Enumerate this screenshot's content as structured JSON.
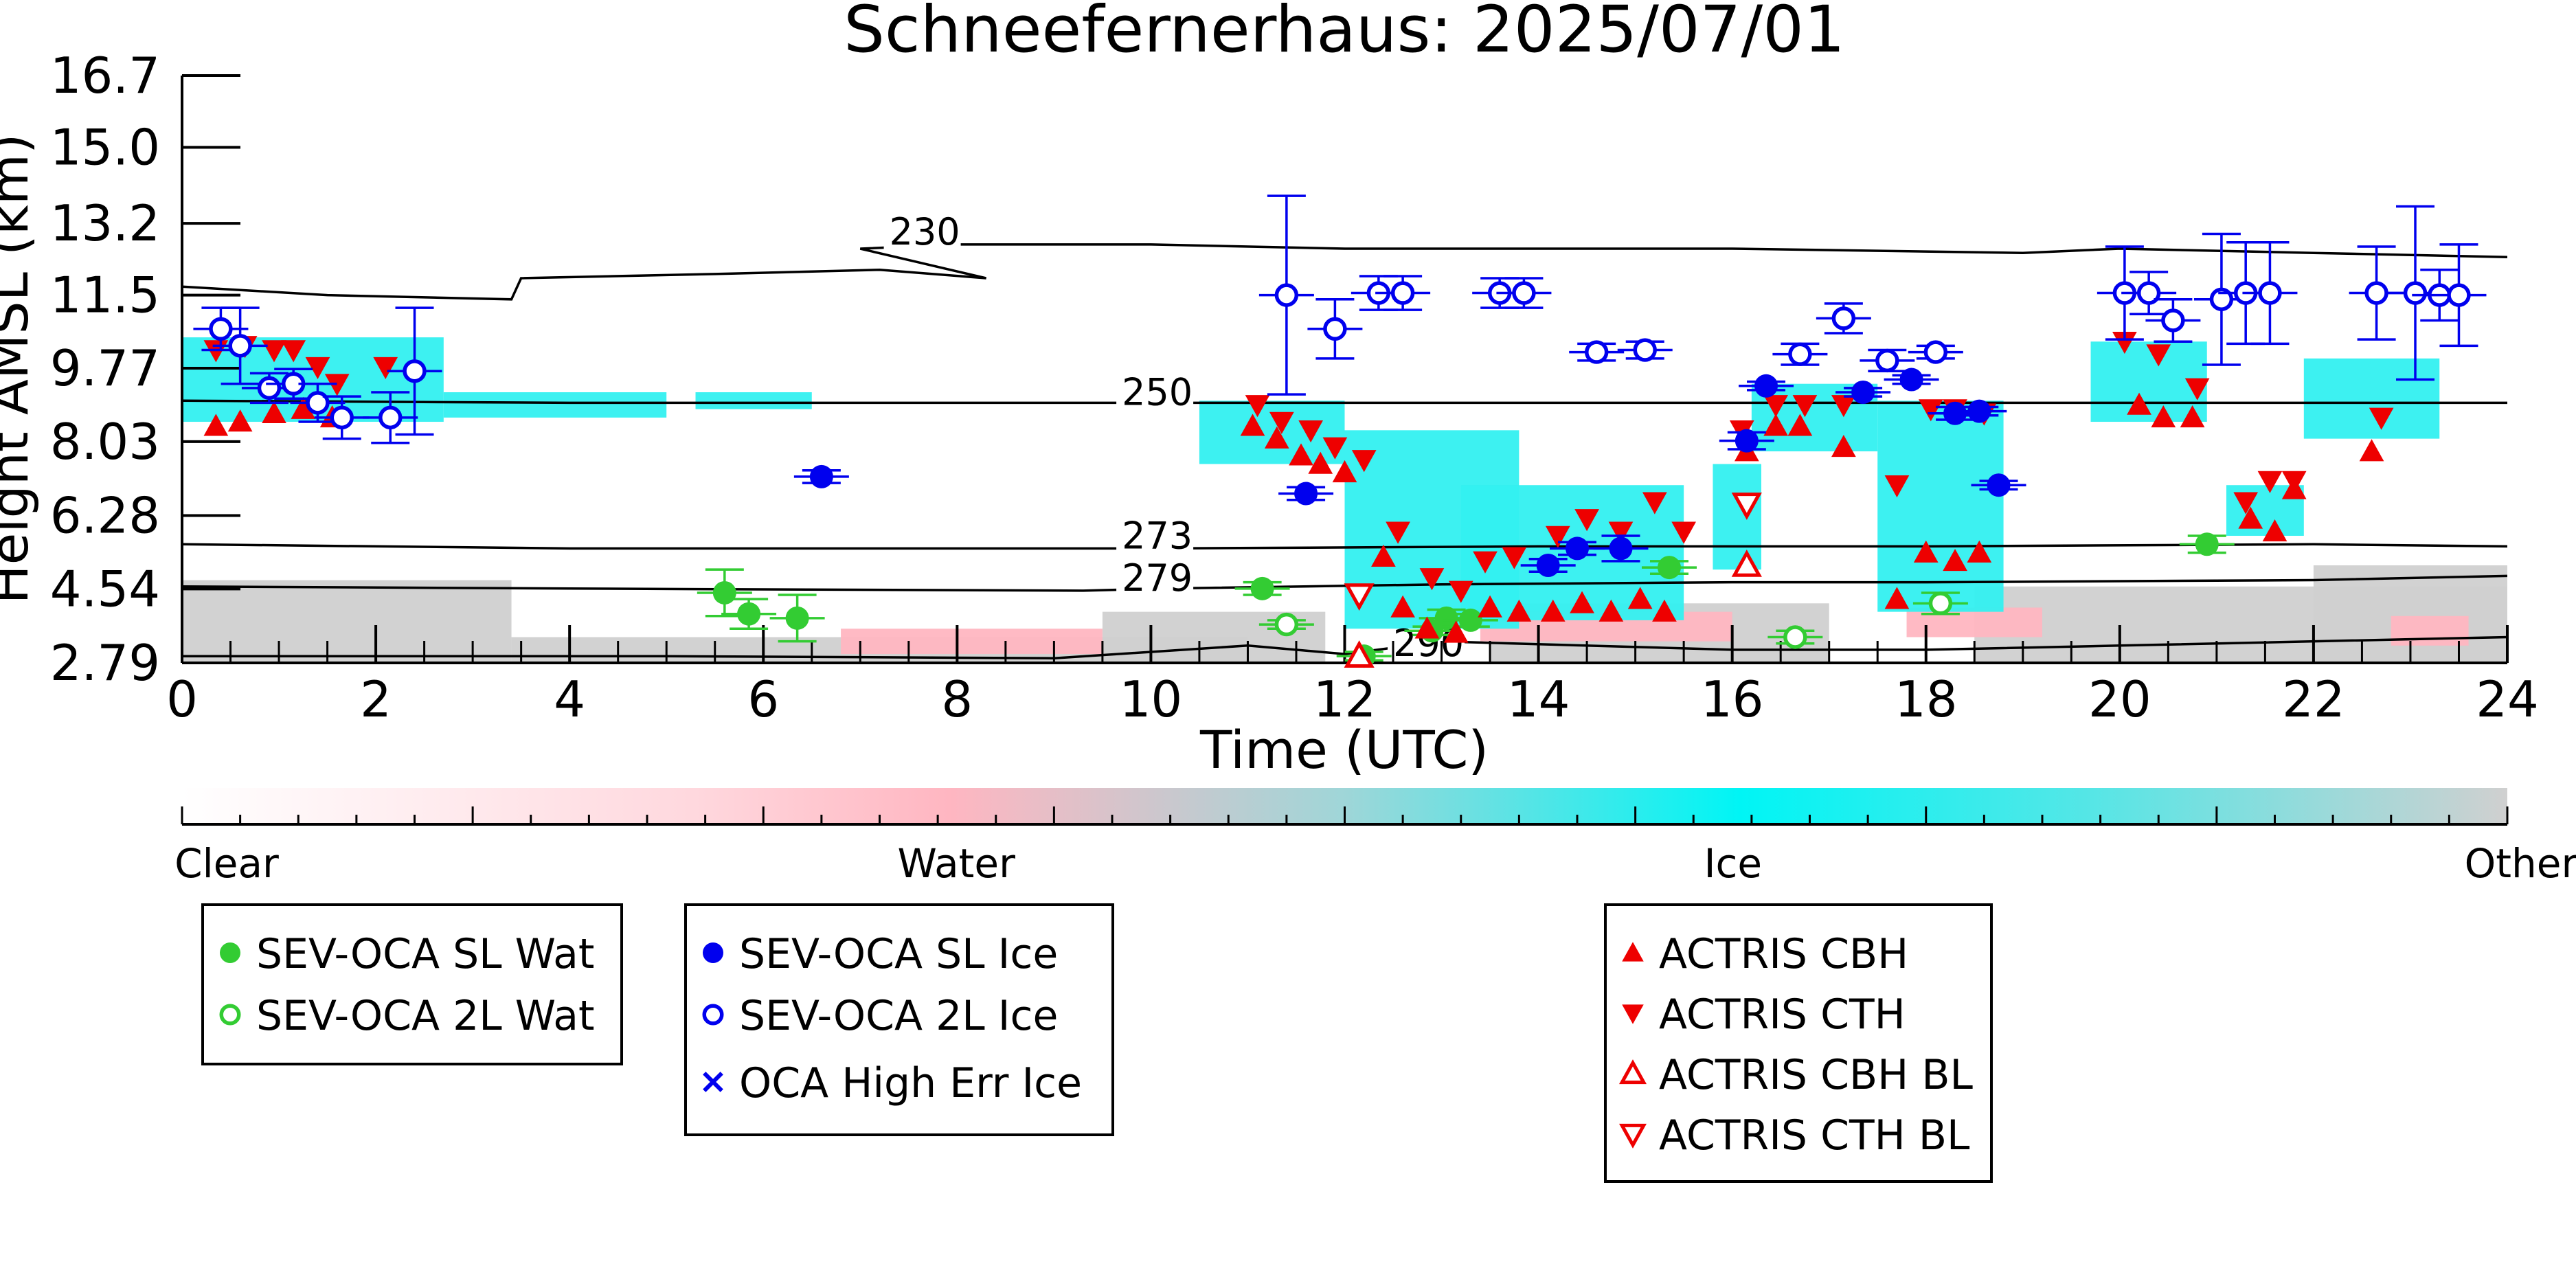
{
  "colors": {
    "water_cbar": "#ffb6c1",
    "ice_cbar": "#00ffff",
    "ice_field": "#33f0f0",
    "other_cbar": "#d0d0d0",
    "sev_wat": "#33cc33",
    "sev_ice": "#0000ee",
    "actris": "#ee0000",
    "contour": "#000000"
  },
  "chart_data": {
    "type": "scatter",
    "title": "Schneefernerhaus: 2025/07/01",
    "xlabel": "Time (UTC)",
    "ylabel": "Height AMSL (km)",
    "xlim": [
      0,
      24
    ],
    "ylim": [
      2.79,
      16.7
    ],
    "xticks": [
      0,
      2,
      4,
      6,
      8,
      10,
      12,
      14,
      16,
      18,
      20,
      22,
      24
    ],
    "yticks": [
      2.79,
      4.54,
      6.28,
      8.03,
      9.77,
      11.5,
      13.2,
      15.0,
      16.7
    ],
    "ytick_labels": [
      "2.79",
      "4.54",
      "6.28",
      "8.03",
      "9.77",
      "11.5",
      "13.2",
      "15.0",
      "16.7"
    ],
    "contours": [
      {
        "label": "230",
        "label_at": [
          7.3,
          12.7
        ],
        "points": [
          [
            0,
            11.7
          ],
          [
            1.5,
            11.5
          ],
          [
            3.4,
            11.4
          ],
          [
            3.5,
            11.9
          ],
          [
            5.5,
            12.0
          ],
          [
            7.2,
            12.1
          ],
          [
            8.3,
            11.9
          ],
          [
            7.0,
            12.6
          ],
          [
            8.0,
            12.7
          ],
          [
            10,
            12.7
          ],
          [
            12,
            12.6
          ],
          [
            16,
            12.6
          ],
          [
            19,
            12.5
          ],
          [
            20,
            12.6
          ],
          [
            22,
            12.5
          ],
          [
            24,
            12.4
          ]
        ]
      },
      {
        "label": "250",
        "label_at": [
          9.7,
          8.9
        ],
        "points": [
          [
            0,
            9.0
          ],
          [
            4,
            8.95
          ],
          [
            8,
            8.95
          ],
          [
            9.3,
            8.95
          ],
          [
            10.1,
            8.95
          ],
          [
            14,
            8.95
          ],
          [
            18,
            8.95
          ],
          [
            24,
            8.95
          ]
        ]
      },
      {
        "label": "273",
        "label_at": [
          9.7,
          5.5
        ],
        "points": [
          [
            0,
            5.6
          ],
          [
            4,
            5.5
          ],
          [
            9.3,
            5.5
          ],
          [
            10.1,
            5.5
          ],
          [
            14,
            5.55
          ],
          [
            18,
            5.55
          ],
          [
            22,
            5.6
          ],
          [
            24,
            5.55
          ]
        ]
      },
      {
        "label": "279",
        "label_at": [
          9.7,
          4.5
        ],
        "points": [
          [
            0,
            4.6
          ],
          [
            4,
            4.55
          ],
          [
            9.3,
            4.5
          ],
          [
            10.1,
            4.55
          ],
          [
            13,
            4.65
          ],
          [
            16,
            4.7
          ],
          [
            18,
            4.7
          ],
          [
            22,
            4.75
          ],
          [
            24,
            4.85
          ]
        ]
      },
      {
        "label": "290",
        "label_at": [
          12.5,
          2.95
        ],
        "points": [
          [
            0,
            2.95
          ],
          [
            5,
            2.95
          ],
          [
            9,
            2.9
          ],
          [
            11,
            3.2
          ],
          [
            12,
            3.0
          ],
          [
            13,
            3.3
          ],
          [
            16,
            3.1
          ],
          [
            18,
            3.1
          ],
          [
            20,
            3.2
          ],
          [
            24,
            3.4
          ]
        ]
      }
    ],
    "field_ice": [
      {
        "x0": 0.0,
        "x1": 2.7,
        "y0": 8.5,
        "y1": 10.5
      },
      {
        "x0": 2.7,
        "x1": 5.0,
        "y0": 8.6,
        "y1": 9.2
      },
      {
        "x0": 5.3,
        "x1": 6.5,
        "y0": 8.8,
        "y1": 9.2
      },
      {
        "x0": 10.5,
        "x1": 12.0,
        "y0": 7.5,
        "y1": 9.0
      },
      {
        "x0": 12.0,
        "x1": 13.8,
        "y0": 3.6,
        "y1": 8.3
      },
      {
        "x0": 13.2,
        "x1": 15.5,
        "y0": 3.8,
        "y1": 7.0
      },
      {
        "x0": 15.8,
        "x1": 16.3,
        "y0": 5.0,
        "y1": 7.5
      },
      {
        "x0": 16.2,
        "x1": 17.5,
        "y0": 7.8,
        "y1": 9.4
      },
      {
        "x0": 17.5,
        "x1": 18.8,
        "y0": 4.0,
        "y1": 9.0
      },
      {
        "x0": 19.7,
        "x1": 20.9,
        "y0": 8.5,
        "y1": 10.4
      },
      {
        "x0": 21.1,
        "x1": 21.9,
        "y0": 5.8,
        "y1": 7.0
      },
      {
        "x0": 21.9,
        "x1": 23.3,
        "y0": 8.1,
        "y1": 10.0
      }
    ],
    "field_other": [
      {
        "x0": 0.0,
        "x1": 3.4,
        "y0": 2.79,
        "y1": 4.75
      },
      {
        "x0": 3.4,
        "x1": 11.0,
        "y0": 2.79,
        "y1": 3.4
      },
      {
        "x0": 9.5,
        "x1": 11.8,
        "y0": 2.79,
        "y1": 4.0
      },
      {
        "x0": 13.5,
        "x1": 17.0,
        "y0": 2.79,
        "y1": 4.2
      },
      {
        "x0": 18.5,
        "x1": 24.0,
        "y0": 2.79,
        "y1": 4.6
      },
      {
        "x0": 22.0,
        "x1": 24.0,
        "y0": 2.79,
        "y1": 5.1
      }
    ],
    "field_water": [
      {
        "x0": 6.8,
        "x1": 9.5,
        "y0": 3.0,
        "y1": 3.6
      },
      {
        "x0": 13.4,
        "x1": 16.0,
        "y0": 3.3,
        "y1": 4.0
      },
      {
        "x0": 17.8,
        "x1": 19.2,
        "y0": 3.4,
        "y1": 4.1
      },
      {
        "x0": 22.8,
        "x1": 23.6,
        "y0": 3.2,
        "y1": 3.9
      }
    ],
    "series": [
      {
        "name": "SEV-OCA SL Wat",
        "marker": "filled-circle",
        "points": [
          [
            5.6,
            4.45,
            0.55
          ],
          [
            5.85,
            3.95,
            0.35
          ],
          [
            6.35,
            3.85,
            0.55
          ],
          [
            11.15,
            4.55,
            0.15
          ],
          [
            13.05,
            3.85,
            0.2
          ],
          [
            13.3,
            3.8,
            0.15
          ],
          [
            15.35,
            5.05,
            0.15
          ],
          [
            20.9,
            5.6,
            0.2
          ],
          [
            12.9,
            3.55,
            0.1
          ],
          [
            12.2,
            2.95,
            0.1
          ]
        ]
      },
      {
        "name": "SEV-OCA 2L Wat",
        "marker": "open-circle",
        "points": [
          [
            11.4,
            3.7,
            0.1
          ],
          [
            16.65,
            3.4,
            0.15
          ],
          [
            18.15,
            4.2,
            0.25
          ]
        ]
      },
      {
        "name": "SEV-OCA SL Ice",
        "marker": "filled-circle",
        "points": [
          [
            6.6,
            7.2,
            0.15
          ],
          [
            11.6,
            6.8,
            0.15
          ],
          [
            14.1,
            5.1,
            0.15
          ],
          [
            14.4,
            5.5,
            0.15
          ],
          [
            14.85,
            5.5,
            0.3
          ],
          [
            16.15,
            8.05,
            0.2
          ],
          [
            16.35,
            9.35,
            0.1
          ],
          [
            17.35,
            9.2,
            0.1
          ],
          [
            17.85,
            9.5,
            0.1
          ],
          [
            18.3,
            8.7,
            0.15
          ],
          [
            18.55,
            8.75,
            0.1
          ],
          [
            18.75,
            7.0,
            0.1
          ]
        ]
      },
      {
        "name": "SEV-OCA 2L Ice",
        "marker": "open-circle",
        "points": [
          [
            0.4,
            10.7,
            0.5
          ],
          [
            0.6,
            10.3,
            0.9
          ],
          [
            0.9,
            9.3,
            0.35
          ],
          [
            1.15,
            9.4,
            0.35
          ],
          [
            1.4,
            8.95,
            0.45
          ],
          [
            1.65,
            8.6,
            0.5
          ],
          [
            2.15,
            8.6,
            0.6
          ],
          [
            2.4,
            9.7,
            1.5
          ],
          [
            11.4,
            11.5,
            2.35
          ],
          [
            11.9,
            10.7,
            0.7
          ],
          [
            12.35,
            11.55,
            0.4
          ],
          [
            12.6,
            11.55,
            0.4
          ],
          [
            13.6,
            11.55,
            0.35
          ],
          [
            13.85,
            11.55,
            0.35
          ],
          [
            14.6,
            10.15,
            0.2
          ],
          [
            15.1,
            10.2,
            0.2
          ],
          [
            16.7,
            10.1,
            0.25
          ],
          [
            17.15,
            10.95,
            0.35
          ],
          [
            17.6,
            9.95,
            0.25
          ],
          [
            18.1,
            10.15,
            0.15
          ],
          [
            20.05,
            11.55,
            1.1
          ],
          [
            20.3,
            11.55,
            0.5
          ],
          [
            20.55,
            10.9,
            0.5
          ],
          [
            21.05,
            11.4,
            1.55
          ],
          [
            21.3,
            11.55,
            1.2
          ],
          [
            21.55,
            11.55,
            1.2
          ],
          [
            22.65,
            11.55,
            1.1
          ],
          [
            23.05,
            11.55,
            2.05
          ],
          [
            23.3,
            11.5,
            0.6
          ],
          [
            23.5,
            11.5,
            1.2
          ]
        ]
      },
      {
        "name": "OCA High Err Ice",
        "marker": "x",
        "points": []
      },
      {
        "name": "ACTRIS CBH",
        "marker": "filled-triangle-up",
        "points": [
          [
            0.35,
            8.4
          ],
          [
            0.6,
            8.5
          ],
          [
            0.95,
            8.7
          ],
          [
            1.25,
            8.8
          ],
          [
            1.55,
            8.6
          ],
          [
            11.05,
            8.4
          ],
          [
            11.3,
            8.1
          ],
          [
            11.55,
            7.7
          ],
          [
            11.75,
            7.5
          ],
          [
            12.0,
            7.3
          ],
          [
            12.4,
            5.3
          ],
          [
            12.6,
            4.1
          ],
          [
            12.85,
            3.6
          ],
          [
            13.15,
            3.5
          ],
          [
            13.5,
            4.1
          ],
          [
            13.8,
            4.0
          ],
          [
            14.15,
            4.0
          ],
          [
            14.45,
            4.2
          ],
          [
            14.75,
            4.0
          ],
          [
            15.05,
            4.3
          ],
          [
            15.3,
            4.0
          ],
          [
            16.15,
            7.8
          ],
          [
            16.45,
            8.4
          ],
          [
            16.7,
            8.4
          ],
          [
            17.15,
            7.9
          ],
          [
            17.7,
            4.3
          ],
          [
            18.0,
            5.4
          ],
          [
            18.3,
            5.2
          ],
          [
            18.55,
            5.4
          ],
          [
            20.2,
            8.9
          ],
          [
            20.45,
            8.6
          ],
          [
            20.75,
            8.6
          ],
          [
            21.35,
            6.2
          ],
          [
            21.6,
            5.9
          ],
          [
            21.8,
            6.9
          ],
          [
            22.6,
            7.8
          ]
        ]
      },
      {
        "name": "ACTRIS CTH",
        "marker": "filled-triangle-down",
        "points": [
          [
            0.35,
            10.2
          ],
          [
            0.65,
            10.3
          ],
          [
            0.95,
            10.2
          ],
          [
            1.15,
            10.2
          ],
          [
            1.4,
            9.8
          ],
          [
            1.6,
            9.4
          ],
          [
            2.1,
            9.8
          ],
          [
            11.1,
            8.9
          ],
          [
            11.35,
            8.5
          ],
          [
            11.65,
            8.3
          ],
          [
            11.9,
            7.9
          ],
          [
            12.2,
            7.6
          ],
          [
            12.55,
            5.9
          ],
          [
            12.9,
            4.8
          ],
          [
            13.2,
            4.5
          ],
          [
            13.45,
            5.2
          ],
          [
            13.75,
            5.3
          ],
          [
            14.2,
            5.8
          ],
          [
            14.5,
            6.2
          ],
          [
            14.85,
            5.9
          ],
          [
            15.2,
            6.6
          ],
          [
            15.5,
            5.9
          ],
          [
            16.1,
            8.3
          ],
          [
            16.45,
            8.9
          ],
          [
            16.75,
            8.9
          ],
          [
            17.15,
            8.9
          ],
          [
            17.7,
            7.0
          ],
          [
            18.05,
            8.8
          ],
          [
            18.3,
            8.8
          ],
          [
            18.6,
            8.7
          ],
          [
            20.05,
            10.4
          ],
          [
            20.4,
            10.1
          ],
          [
            20.8,
            9.3
          ],
          [
            21.3,
            6.6
          ],
          [
            21.55,
            7.1
          ],
          [
            21.8,
            7.1
          ],
          [
            22.7,
            8.6
          ]
        ]
      },
      {
        "name": "ACTRIS CBH BL",
        "marker": "open-triangle-up",
        "points": [
          [
            16.15,
            5.1
          ],
          [
            12.15,
            2.95
          ]
        ]
      },
      {
        "name": "ACTRIS CTH BL",
        "marker": "open-triangle-down",
        "points": [
          [
            16.15,
            6.55
          ],
          [
            12.15,
            4.4
          ]
        ]
      }
    ],
    "colorbar": {
      "labels": [
        "Clear",
        "Water",
        "Ice",
        "Other"
      ]
    },
    "legend_groups": [
      [
        "SEV-OCA SL Wat",
        "SEV-OCA 2L Wat"
      ],
      [
        "SEV-OCA SL Ice",
        "SEV-OCA 2L Ice",
        "OCA High Err Ice"
      ],
      [
        "ACTRIS CBH",
        "ACTRIS CTH",
        "ACTRIS CBH BL",
        "ACTRIS CTH BL"
      ]
    ]
  }
}
